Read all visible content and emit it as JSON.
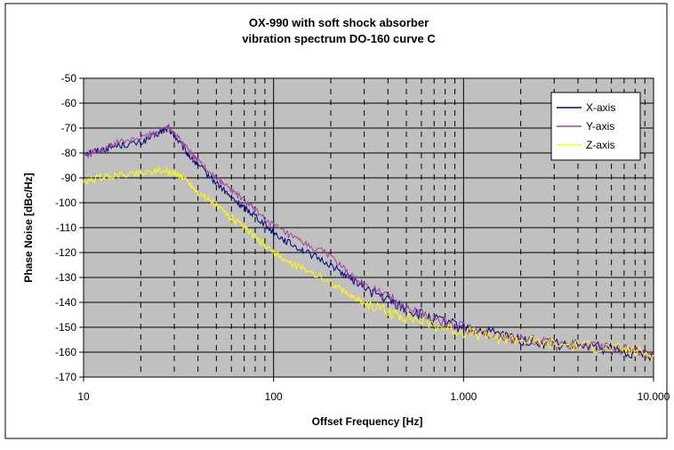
{
  "chart_data": {
    "type": "line",
    "title_line1": "OX-990 with soft shock absorber",
    "title_line2": "vibration spectrum DO-160 curve C",
    "xlabel": "Offset Frequency [Hz]",
    "ylabel": "Phase Noise [dBc/Hz]",
    "x_scale": "log",
    "xlim": [
      10,
      10000
    ],
    "ylim": [
      -170,
      -50
    ],
    "x_ticks": [
      10,
      100,
      1000,
      10000
    ],
    "x_tick_labels": [
      "10",
      "100",
      "1.000",
      "10.000"
    ],
    "y_ticks": [
      -50,
      -60,
      -70,
      -80,
      -90,
      -100,
      -110,
      -120,
      -130,
      -140,
      -150,
      -160,
      -170
    ],
    "y_tick_labels": [
      "-50",
      "-60",
      "-70",
      "-80",
      "-90",
      "-100",
      "-110",
      "-120",
      "-130",
      "-140",
      "-150",
      "-160",
      "-170"
    ],
    "grid": true,
    "plot_background": "#C0C0C0",
    "legend_position": "top-right",
    "series": [
      {
        "name": "X-axis",
        "color": "#000080",
        "x": [
          10,
          12,
          15,
          20,
          25,
          28,
          30,
          35,
          40,
          50,
          60,
          70,
          80,
          100,
          120,
          150,
          200,
          250,
          300,
          400,
          500,
          700,
          1000,
          1500,
          2000,
          3000,
          5000,
          7000,
          10000
        ],
        "y": [
          -80,
          -79,
          -77,
          -76,
          -72,
          -70,
          -73,
          -80,
          -85,
          -92,
          -98,
          -102,
          -105,
          -112,
          -116,
          -120,
          -125,
          -130,
          -134,
          -139,
          -143,
          -147,
          -150,
          -153,
          -155,
          -157,
          -158,
          -160,
          -161
        ]
      },
      {
        "name": "Y-axis",
        "color": "#A0449E",
        "x": [
          10,
          12,
          15,
          20,
          25,
          28,
          30,
          35,
          40,
          50,
          60,
          70,
          80,
          100,
          120,
          150,
          200,
          250,
          300,
          400,
          500,
          700,
          1000,
          1500,
          2000,
          3000,
          5000,
          7000,
          10000
        ],
        "y": [
          -81,
          -79,
          -76,
          -74,
          -71,
          -69,
          -72,
          -78,
          -83,
          -90,
          -95,
          -99,
          -103,
          -109,
          -113,
          -117,
          -121,
          -129,
          -133,
          -138,
          -142,
          -147,
          -150,
          -153,
          -155,
          -157,
          -158,
          -159,
          -161
        ]
      },
      {
        "name": "Z-axis",
        "color": "#FFFF00",
        "x": [
          10,
          12,
          15,
          20,
          25,
          30,
          35,
          40,
          50,
          60,
          70,
          80,
          100,
          120,
          150,
          200,
          250,
          300,
          400,
          500,
          700,
          1000,
          1500,
          2000,
          3000,
          5000,
          7000,
          10000
        ],
        "y": [
          -92,
          -90,
          -89,
          -88,
          -87,
          -88,
          -91,
          -96,
          -101,
          -106,
          -110,
          -114,
          -120,
          -124,
          -127,
          -132,
          -137,
          -140,
          -144,
          -146,
          -149,
          -152,
          -154,
          -155,
          -157,
          -158,
          -159,
          -161
        ]
      }
    ]
  }
}
